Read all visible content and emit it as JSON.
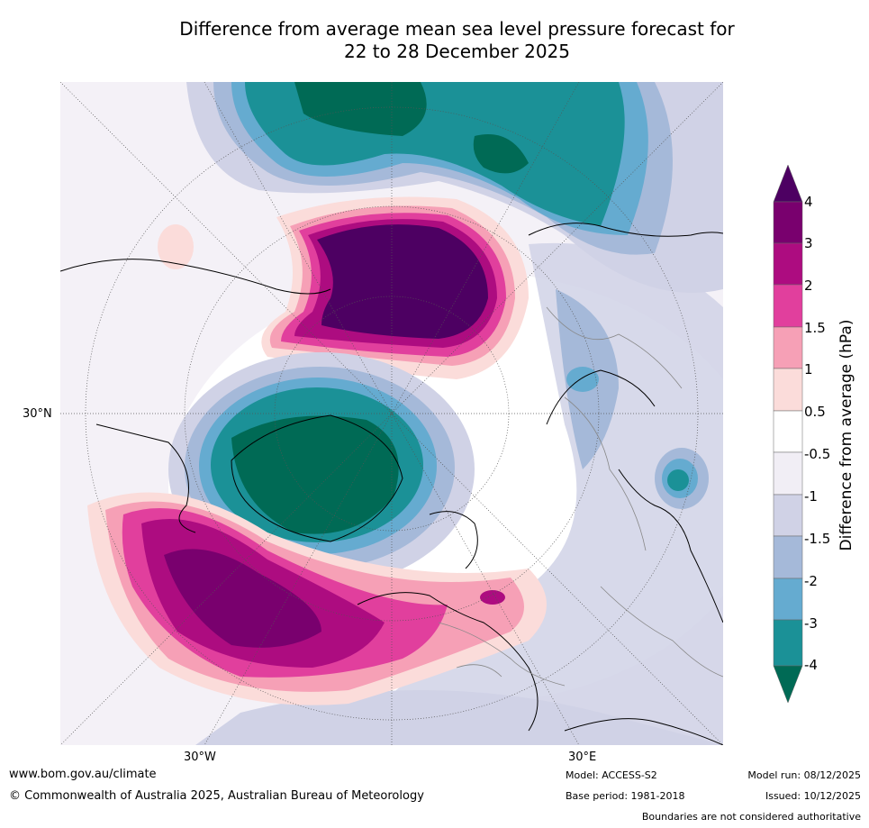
{
  "title": {
    "line1": "Difference from average mean sea level pressure forecast for",
    "line2": "22 to 28 December 2025"
  },
  "map": {
    "lat_label": "30°N",
    "lon_labels": [
      "30°W",
      "30°E"
    ],
    "colors": {
      "neg4": "#006a55",
      "neg3": "#1b9197",
      "neg2": "#65abd0",
      "neg1_5": "#a5b9d9",
      "neg1": "#d0d2e6",
      "neg0_5": "#f1eef5",
      "zero": "#ffffff",
      "pos0_5": "#fbdcda",
      "pos1": "#f6a0b6",
      "pos1_5": "#e13f9d",
      "pos2": "#ad0c80",
      "pos3": "#79006e",
      "pos4": "#4d0062"
    }
  },
  "colorbar": {
    "label": "Difference from average (hPa)",
    "ticks": [
      "4",
      "3",
      "2",
      "1.5",
      "1",
      "0.5",
      "-0.5",
      "-1",
      "-1.5",
      "-2",
      "-3",
      "-4"
    ]
  },
  "footer": {
    "website": "www.bom.gov.au/climate",
    "copyright": "© Commonwealth of Australia 2025, Australian Bureau of Meteorology",
    "model": "Model: ACCESS-S2",
    "base_period": "Base period: 1981-2018",
    "model_run": "Model run: 08/12/2025",
    "issued": "Issued: 10/12/2025",
    "disclaimer": "Boundaries are not considered authoritative"
  }
}
